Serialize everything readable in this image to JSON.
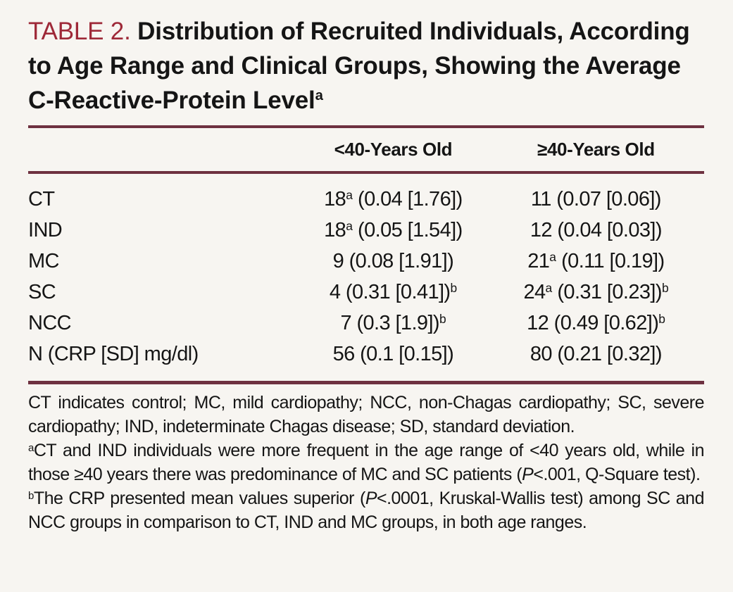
{
  "title": {
    "label": "TABLE 2.",
    "text": "Distribution of Recruited Individuals, According to Age Range and Clinical Groups, Showing the Average C-Reactive-Protein Level",
    "footnote_marker": "a"
  },
  "table": {
    "columns": {
      "under40": "<40-Years Old",
      "over40": "≥40-Years Old"
    },
    "rows": [
      {
        "label": "CT",
        "under40": {
          "n": "18",
          "n_sup": "a",
          "rest": " (0.04 [1.76])",
          "end_sup": ""
        },
        "over40": {
          "n": "11",
          "n_sup": "",
          "rest": " (0.07 [0.06])",
          "end_sup": ""
        }
      },
      {
        "label": "IND",
        "under40": {
          "n": "18",
          "n_sup": "a",
          "rest": " (0.05 [1.54])",
          "end_sup": ""
        },
        "over40": {
          "n": "12",
          "n_sup": "",
          "rest": " (0.04 [0.03])",
          "end_sup": ""
        }
      },
      {
        "label": "MC",
        "under40": {
          "n": "9",
          "n_sup": "",
          "rest": " (0.08 [1.91])",
          "end_sup": ""
        },
        "over40": {
          "n": "21",
          "n_sup": "a",
          "rest": " (0.11 [0.19])",
          "end_sup": ""
        }
      },
      {
        "label": "SC",
        "under40": {
          "n": "4",
          "n_sup": "",
          "rest": " (0.31 [0.41])",
          "end_sup": "b"
        },
        "over40": {
          "n": "24",
          "n_sup": "a",
          "rest": " (0.31 [0.23])",
          "end_sup": "b"
        }
      },
      {
        "label": "NCC",
        "under40": {
          "n": "7",
          "n_sup": "",
          "rest": " (0.3 [1.9])",
          "end_sup": "b"
        },
        "over40": {
          "n": "12",
          "n_sup": "",
          "rest": " (0.49 [0.62])",
          "end_sup": "b"
        }
      },
      {
        "label": "N (CRP [SD] mg/dl)",
        "under40": {
          "n": "56",
          "n_sup": "",
          "rest": " (0.1 [0.15])",
          "end_sup": ""
        },
        "over40": {
          "n": "80",
          "n_sup": "",
          "rest": " (0.21 [0.32])",
          "end_sup": ""
        }
      }
    ]
  },
  "footnotes": {
    "abbrev": "CT indicates control; MC, mild cardiopathy; NCC, non-Chagas cardiopathy; SC, severe cardiopathy; IND, indeterminate Chagas disease; SD, standard deviation.",
    "a": {
      "marker": "a",
      "text_before_p": "CT and IND individuals were more frequent in the age range of <40 years old, while in those ≥40 years there was predominance of MC and SC patients (",
      "p": "P",
      "text_after_p": "<.001, Q-Square test)."
    },
    "b": {
      "marker": "b",
      "text_before_p": "The CRP presented mean values superior (",
      "p": "P",
      "text_after_p": "<.0001, Kruskal-Wallis test) among SC and NCC groups in comparison to CT, IND and MC groups, in both age ranges."
    }
  },
  "colors": {
    "accent_red": "#9e2938",
    "rule_maroon": "#6e3140",
    "background": "#f7f5f1",
    "ink": "#151515"
  }
}
